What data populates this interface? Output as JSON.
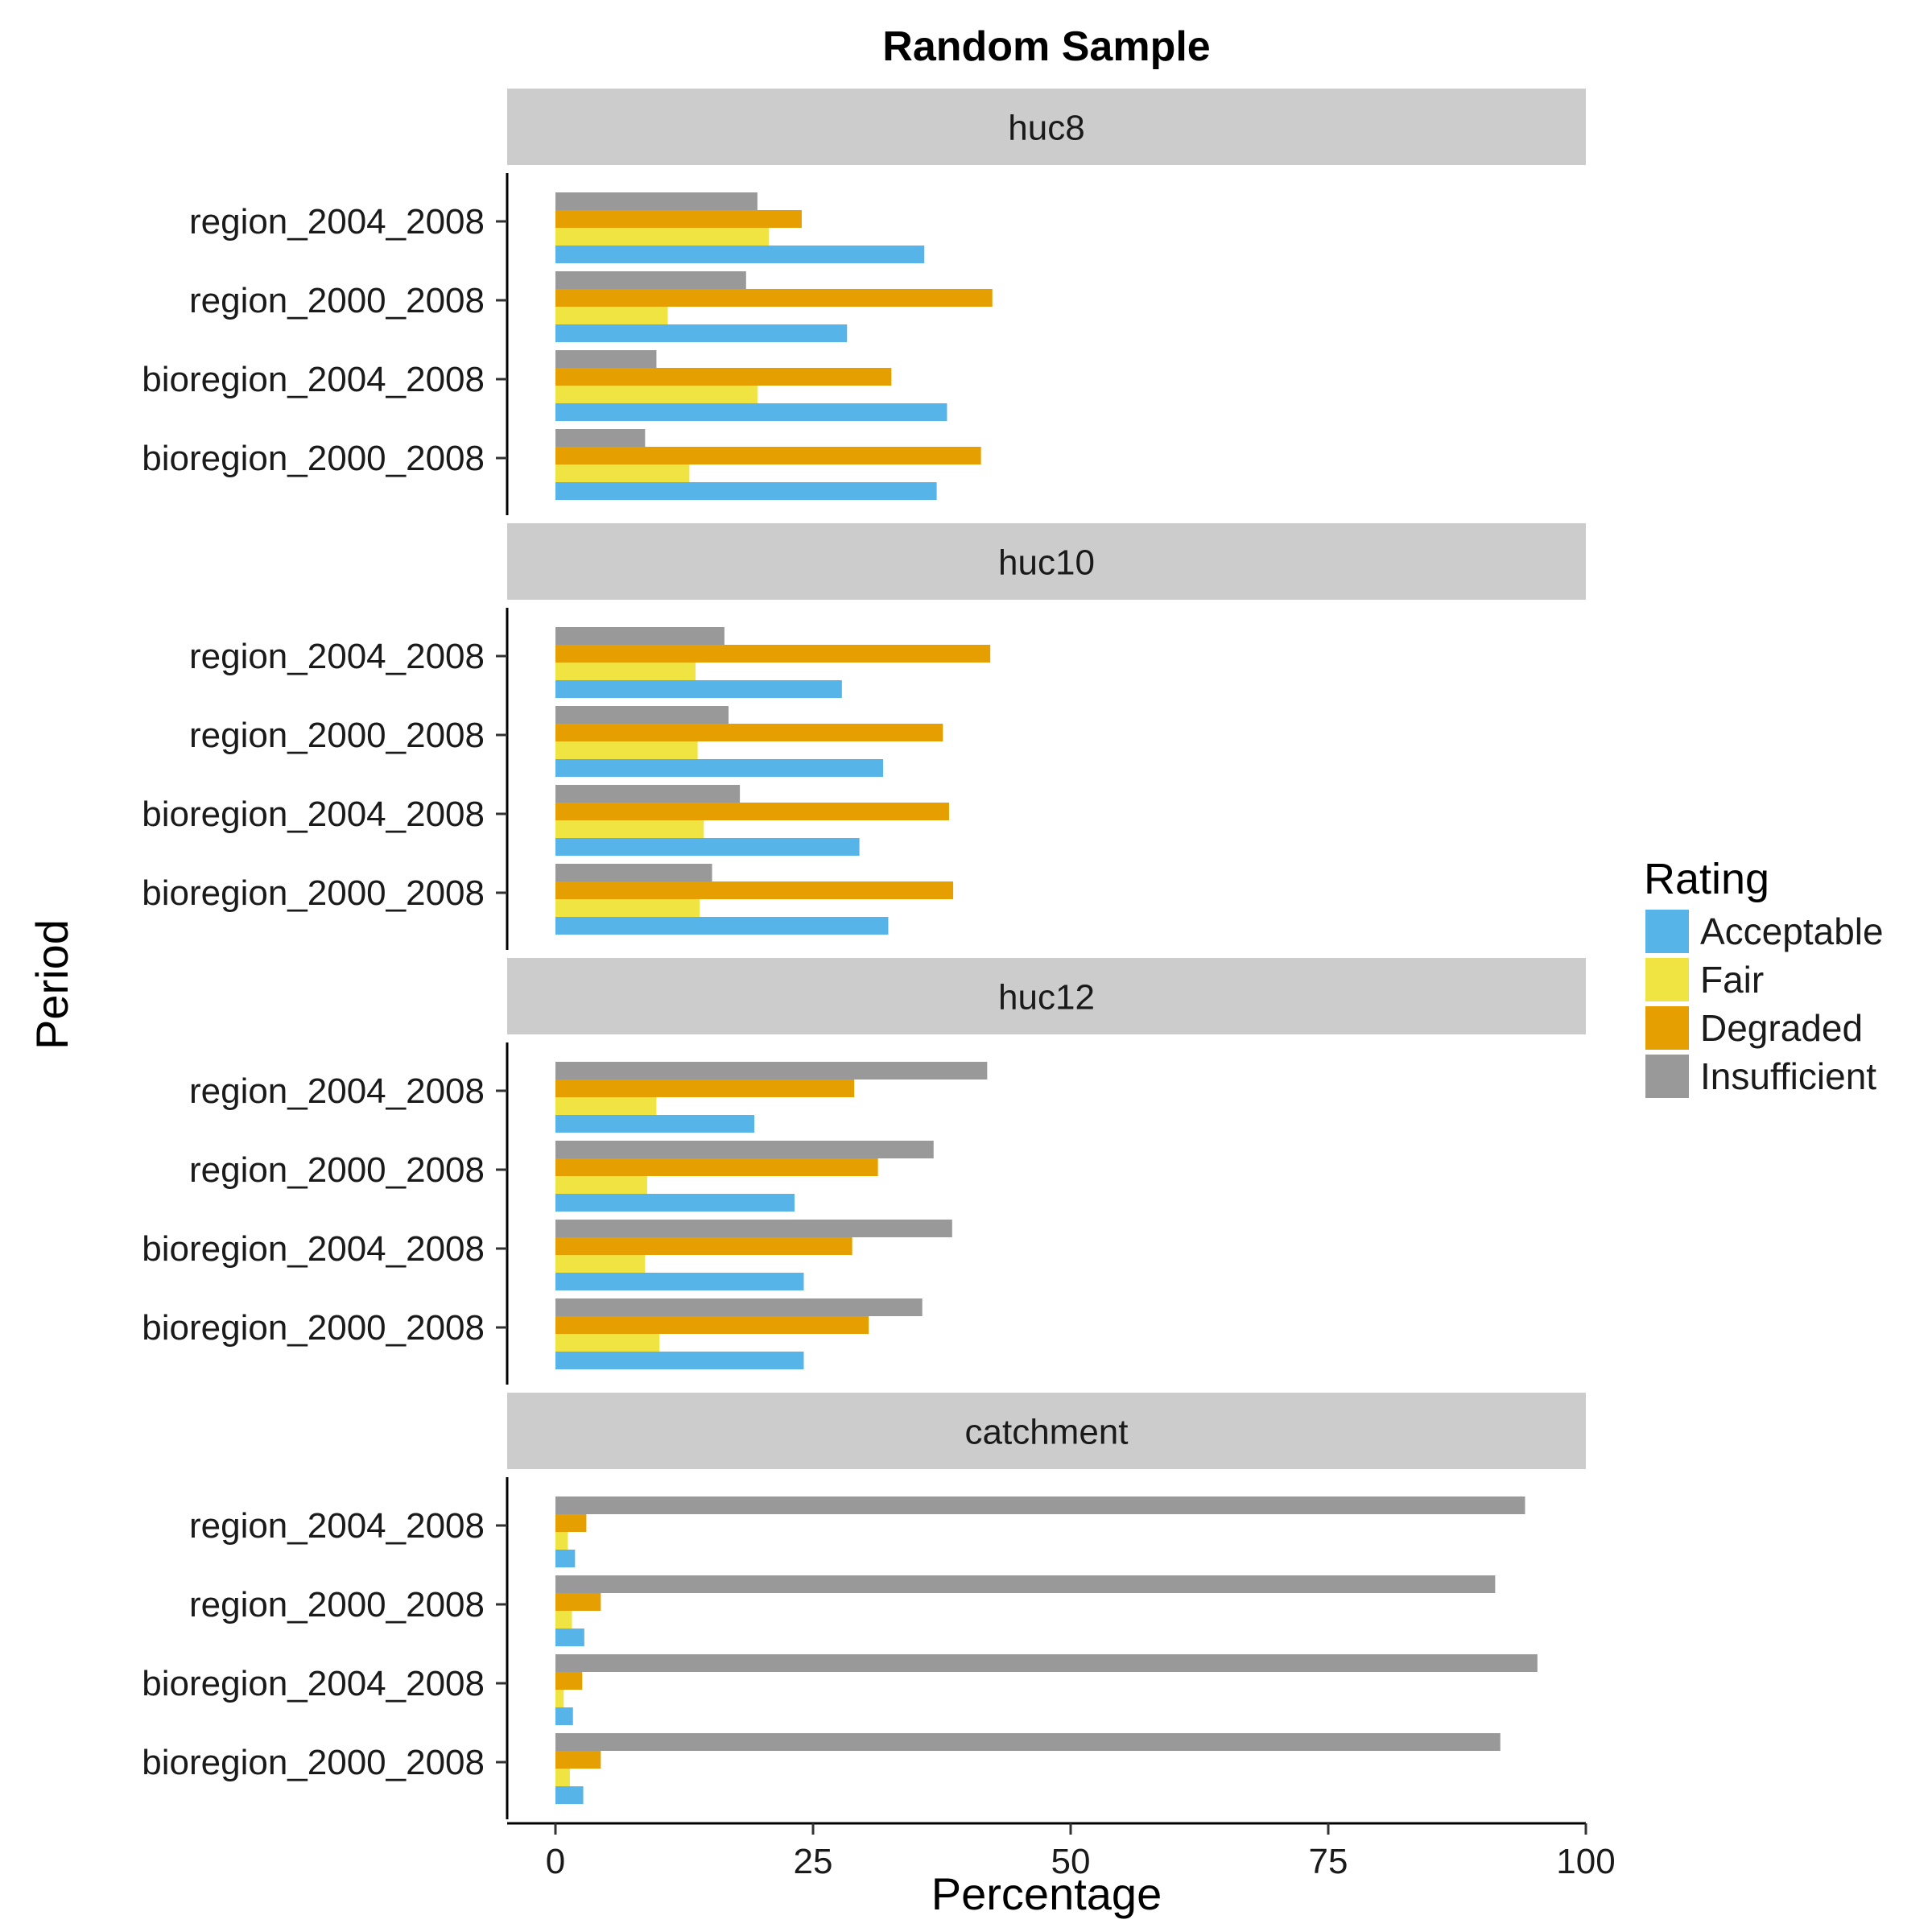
{
  "chart_data": {
    "type": "bar",
    "title": "Random Sample",
    "xlabel": "Percentage",
    "ylabel": "Period",
    "xlim": [
      0,
      100
    ],
    "xticks": [
      "0",
      "25",
      "50",
      "75",
      "100"
    ],
    "grid": false,
    "legend": {
      "title": "Rating",
      "placement": "right"
    },
    "series": [
      {
        "name": "Acceptable",
        "color": "#56b4e9"
      },
      {
        "name": "Fair",
        "color": "#f0e442"
      },
      {
        "name": "Degraded",
        "color": "#e69f00"
      },
      {
        "name": "Insufficient",
        "color": "#999999"
      }
    ],
    "categories": [
      "region_2004_2008",
      "region_2000_2008",
      "bioregion_2004_2008",
      "bioregion_2000_2008"
    ],
    "facets": [
      {
        "name": "huc8",
        "values": {
          "region_2004_2008": {
            "Acceptable": 35.8,
            "Fair": 20.7,
            "Degraded": 23.9,
            "Insufficient": 19.6
          },
          "region_2000_2008": {
            "Acceptable": 28.3,
            "Fair": 10.9,
            "Degraded": 42.4,
            "Insufficient": 18.5
          },
          "bioregion_2004_2008": {
            "Acceptable": 38.0,
            "Fair": 19.6,
            "Degraded": 32.6,
            "Insufficient": 9.8
          },
          "bioregion_2000_2008": {
            "Acceptable": 37.0,
            "Fair": 13.0,
            "Degraded": 41.3,
            "Insufficient": 8.7
          }
        }
      },
      {
        "name": "huc10",
        "values": {
          "region_2004_2008": {
            "Acceptable": 27.8,
            "Fair": 13.6,
            "Degraded": 42.2,
            "Insufficient": 16.4
          },
          "region_2000_2008": {
            "Acceptable": 31.8,
            "Fair": 13.8,
            "Degraded": 37.6,
            "Insufficient": 16.8
          },
          "bioregion_2004_2008": {
            "Acceptable": 29.5,
            "Fair": 14.4,
            "Degraded": 38.2,
            "Insufficient": 17.9
          },
          "bioregion_2000_2008": {
            "Acceptable": 32.3,
            "Fair": 14.0,
            "Degraded": 38.6,
            "Insufficient": 15.2
          }
        }
      },
      {
        "name": "huc12",
        "values": {
          "region_2004_2008": {
            "Acceptable": 19.3,
            "Fair": 9.8,
            "Degraded": 29.0,
            "Insufficient": 41.9
          },
          "region_2000_2008": {
            "Acceptable": 23.2,
            "Fair": 8.9,
            "Degraded": 31.3,
            "Insufficient": 36.7
          },
          "bioregion_2004_2008": {
            "Acceptable": 24.1,
            "Fair": 8.7,
            "Degraded": 28.8,
            "Insufficient": 38.5
          },
          "bioregion_2000_2008": {
            "Acceptable": 24.1,
            "Fair": 10.1,
            "Degraded": 30.4,
            "Insufficient": 35.6
          }
        }
      },
      {
        "name": "catchment",
        "values": {
          "region_2004_2008": {
            "Acceptable": 1.9,
            "Fair": 1.2,
            "Degraded": 3.0,
            "Insufficient": 94.1
          },
          "region_2000_2008": {
            "Acceptable": 2.8,
            "Fair": 1.6,
            "Degraded": 4.4,
            "Insufficient": 91.2
          },
          "bioregion_2004_2008": {
            "Acceptable": 1.7,
            "Fair": 0.8,
            "Degraded": 2.6,
            "Insufficient": 95.3
          },
          "bioregion_2000_2008": {
            "Acceptable": 2.7,
            "Fair": 1.4,
            "Degraded": 4.4,
            "Insufficient": 91.7
          }
        }
      }
    ]
  }
}
